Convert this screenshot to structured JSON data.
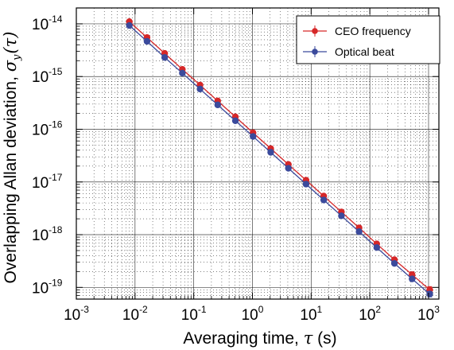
{
  "chart_data": {
    "type": "scatter",
    "xscale": "log",
    "yscale": "log",
    "xlim": [
      0.001,
      1500
    ],
    "ylim": [
      6e-20,
      2e-14
    ],
    "xticks": [
      {
        "value": 0.001,
        "base": "10",
        "exp": "-3"
      },
      {
        "value": 0.01,
        "base": "10",
        "exp": "-2"
      },
      {
        "value": 0.1,
        "base": "10",
        "exp": "-1"
      },
      {
        "value": 1,
        "base": "10",
        "exp": "0"
      },
      {
        "value": 10,
        "base": "10",
        "exp": "1"
      },
      {
        "value": 100,
        "base": "10",
        "exp": "2"
      },
      {
        "value": 1000,
        "base": "10",
        "exp": "3"
      }
    ],
    "yticks": [
      {
        "value": 1e-19,
        "base": "10",
        "exp": "-19"
      },
      {
        "value": 1e-18,
        "base": "10",
        "exp": "-18"
      },
      {
        "value": 1e-17,
        "base": "10",
        "exp": "-17"
      },
      {
        "value": 1e-16,
        "base": "10",
        "exp": "-16"
      },
      {
        "value": 1e-15,
        "base": "10",
        "exp": "-15"
      },
      {
        "value": 1e-14,
        "base": "10",
        "exp": "-14"
      }
    ],
    "xlabel_prefix": "Averaging time, ",
    "xlabel_symbol": "τ",
    "xlabel_suffix": " (s)",
    "ylabel_prefix": "Overlapping Allan deviation, ",
    "ylabel_symbol": "σ",
    "ylabel_sub": "y",
    "ylabel_arg": "(τ)",
    "grid": true,
    "legend_position": "top-right",
    "x": [
      0.008,
      0.016,
      0.032,
      0.064,
      0.128,
      0.256,
      0.512,
      1.024,
      2.048,
      4.096,
      8.192,
      16.384,
      32.768,
      65.536,
      131.072,
      262.144,
      524.288,
      1048.576
    ],
    "series": [
      {
        "name": "CEO frequency",
        "color": "#d62728",
        "values": [
          1.1e-14,
          5.5e-15,
          2.75e-15,
          1.37e-15,
          6.9e-16,
          3.45e-16,
          1.72e-16,
          8.6e-17,
          4.3e-17,
          2.15e-17,
          1.08e-17,
          5.4e-18,
          2.7e-18,
          1.35e-18,
          6.7e-19,
          3.35e-19,
          1.75e-19,
          9e-20
        ],
        "errors": [
          0.05,
          0.05,
          0.05,
          0.05,
          0.05,
          0.05,
          0.05,
          0.05,
          0.05,
          0.05,
          0.05,
          0.05,
          0.05,
          0.05,
          0.06,
          0.08,
          0.12,
          0.15
        ]
      },
      {
        "name": "Optical beat",
        "color": "#3b4a9c",
        "values": [
          9.3e-15,
          4.65e-15,
          2.3e-15,
          1.16e-15,
          5.8e-16,
          2.9e-16,
          1.45e-16,
          7.3e-17,
          3.65e-17,
          1.82e-17,
          9.1e-18,
          4.55e-18,
          2.28e-18,
          1.14e-18,
          5.7e-19,
          2.85e-19,
          1.45e-19,
          7.5e-20
        ],
        "errors": [
          0.04,
          0.04,
          0.04,
          0.04,
          0.04,
          0.04,
          0.04,
          0.04,
          0.04,
          0.04,
          0.04,
          0.04,
          0.04,
          0.04,
          0.05,
          0.07,
          0.1,
          0.12
        ]
      }
    ]
  }
}
